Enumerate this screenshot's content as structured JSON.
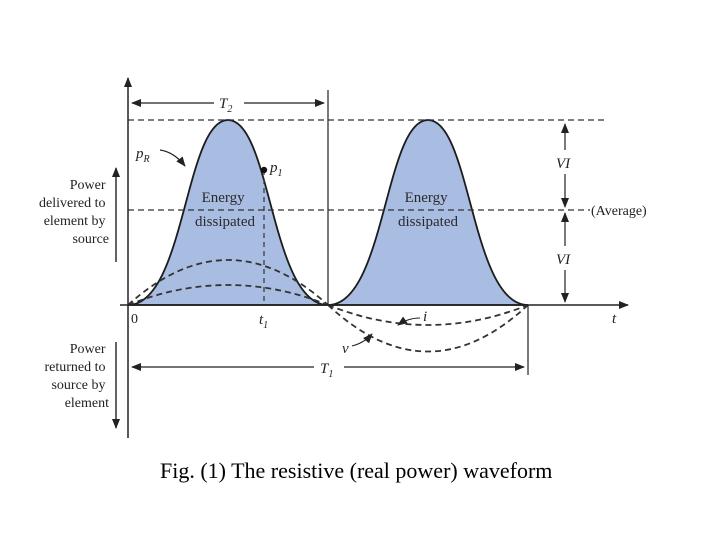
{
  "figure": {
    "caption": "Fig. (1) The resistive (real power) waveform",
    "left_labels": {
      "delivered": [
        "Power",
        "delivered to",
        "element by",
        "source"
      ],
      "returned": [
        "Power",
        "returned to",
        "source by",
        "element"
      ]
    },
    "curve_labels": {
      "pR_base": "p",
      "pR_sub": "R",
      "p1_base": "p",
      "p1_sub": "1",
      "i": "i",
      "v": "v"
    },
    "axis_labels": {
      "origin": "0",
      "t1_base": "t",
      "t1_sub": "1",
      "t": "t",
      "T1_base": "T",
      "T1_sub": "1",
      "T2_base": "T",
      "T2_sub": "2"
    },
    "right_labels": {
      "vi_top": "VI",
      "vi_bottom": "VI",
      "average": "(Average)"
    },
    "energy_labels": [
      [
        "Energy",
        "dissipated"
      ],
      [
        "Energy",
        "dissipated"
      ]
    ],
    "colors": {
      "fill": "#a9bde3",
      "curve": "#1c1c1c",
      "dash": "#333333"
    }
  }
}
